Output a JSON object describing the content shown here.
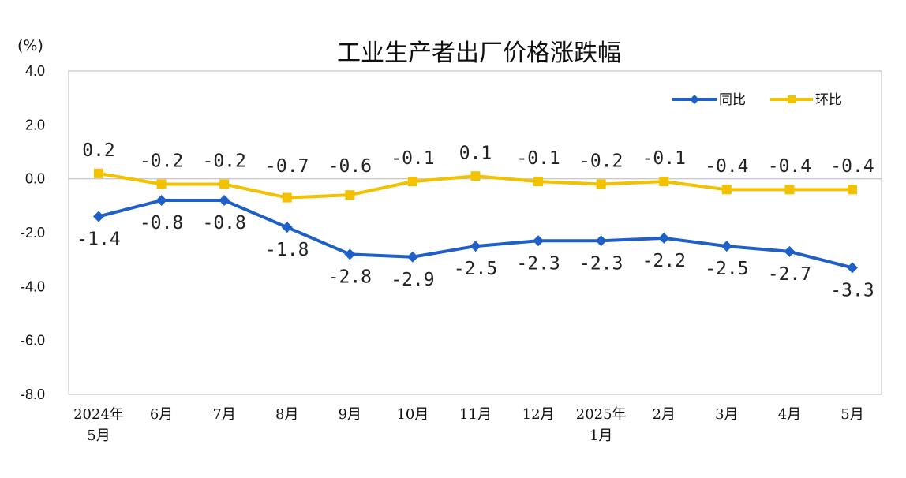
{
  "chart_data": {
    "type": "line",
    "title": "工业生产者出厂价格涨跌幅",
    "unit_label": "(%)",
    "categories": [
      "2024年\n5月",
      "6月",
      "7月",
      "8月",
      "9月",
      "10月",
      "11月",
      "12月",
      "2025年\n1月",
      "2月",
      "3月",
      "4月",
      "5月"
    ],
    "ylim": [
      -8.0,
      4.0
    ],
    "yticks": [
      "4.0",
      "2.0",
      "0.0",
      "-2.0",
      "-4.0",
      "-6.0",
      "-8.0"
    ],
    "ytick_values": [
      4,
      2,
      0,
      -2,
      -4,
      -6,
      -8
    ],
    "grid": false,
    "legend_position": "top-right",
    "series": [
      {
        "name": "同比",
        "color": "#1f5fc8",
        "marker": "diamond",
        "values": [
          -1.4,
          -0.8,
          -0.8,
          -1.8,
          -2.8,
          -2.9,
          -2.5,
          -2.3,
          -2.3,
          -2.2,
          -2.5,
          -2.7,
          -3.3
        ],
        "labels": [
          "-1.4",
          "-0.8",
          "-0.8",
          "-1.8",
          "-2.8",
          "-2.9",
          "-2.5",
          "-2.3",
          "-2.3",
          "-2.2",
          "-2.5",
          "-2.7",
          "-3.3"
        ]
      },
      {
        "name": "环比",
        "color": "#f2c100",
        "marker": "square",
        "values": [
          0.2,
          -0.2,
          -0.2,
          -0.7,
          -0.6,
          -0.1,
          0.1,
          -0.1,
          -0.2,
          -0.1,
          -0.4,
          -0.4,
          -0.4
        ],
        "labels": [
          "0.2",
          "-0.2",
          "-0.2",
          "-0.7",
          "-0.6",
          "-0.1",
          "0.1",
          "-0.1",
          "-0.2",
          "-0.1",
          "-0.4",
          "-0.4",
          "-0.4"
        ]
      }
    ]
  }
}
